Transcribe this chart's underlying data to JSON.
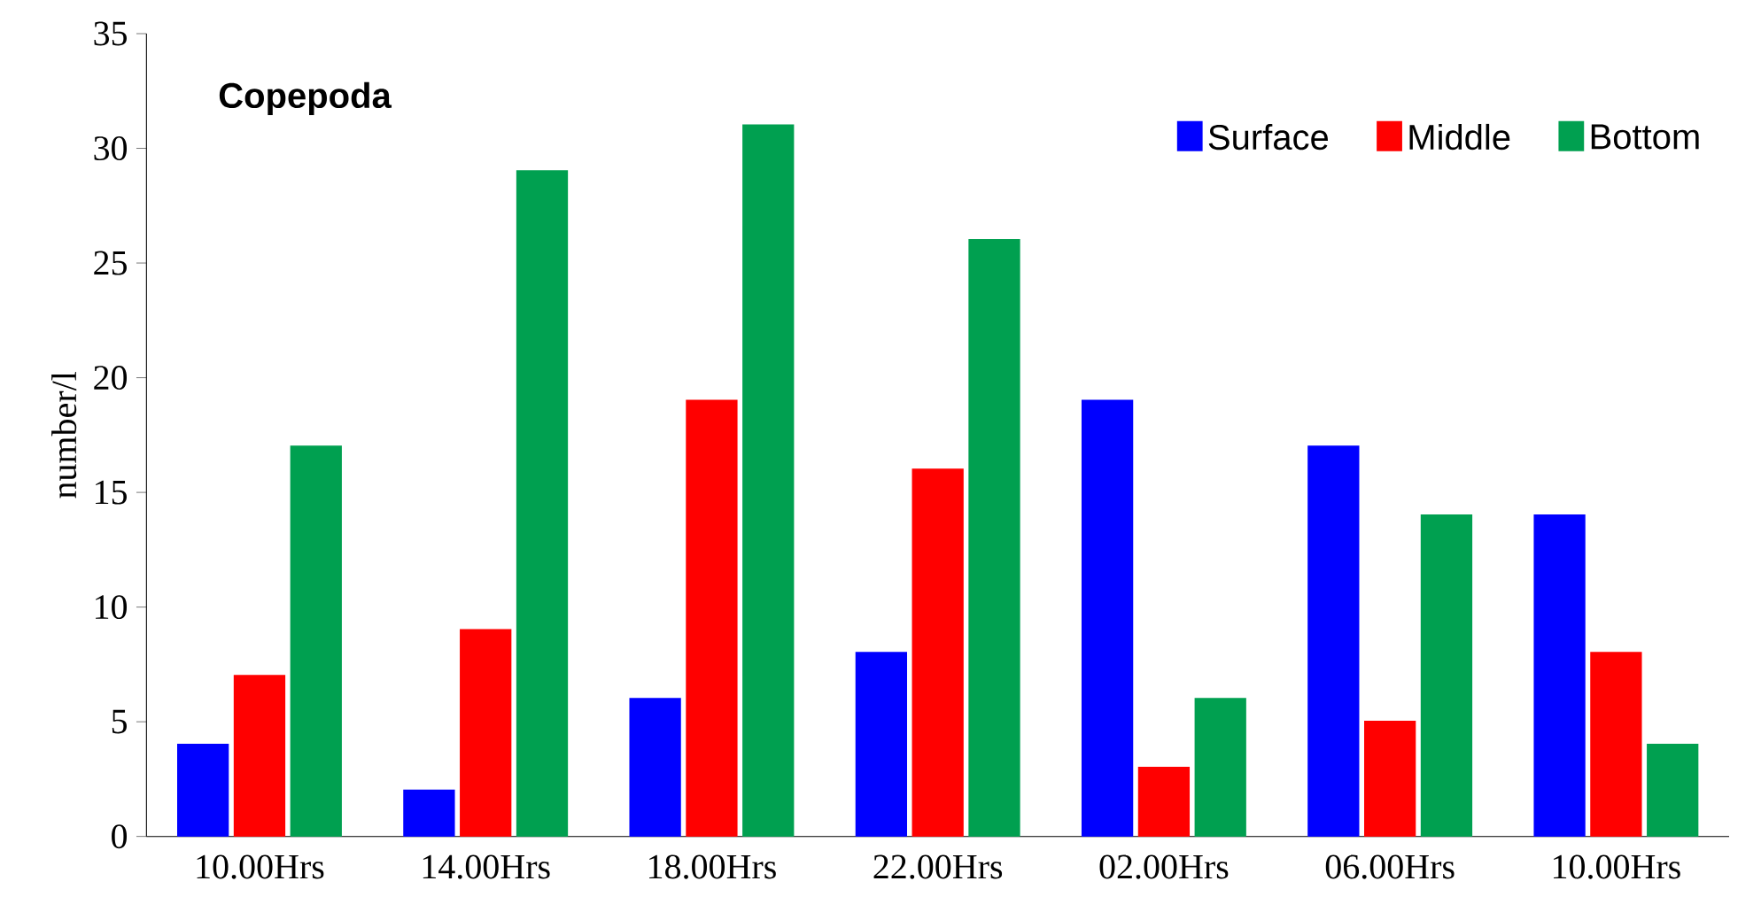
{
  "chart_data": {
    "type": "bar",
    "title": "Copepoda",
    "ylabel": "number/l",
    "categories": [
      "10.00Hrs",
      "14.00Hrs",
      "18.00Hrs",
      "22.00Hrs",
      "02.00Hrs",
      "06.00Hrs",
      "10.00Hrs"
    ],
    "series": [
      {
        "name": "Surface",
        "color": "#0000ff",
        "values": [
          4,
          2,
          6,
          8,
          19,
          17,
          14
        ]
      },
      {
        "name": "Middle",
        "color": "#ff0000",
        "values": [
          7,
          9,
          19,
          16,
          3,
          5,
          8
        ]
      },
      {
        "name": "Bottom",
        "color": "#00a050",
        "values": [
          17,
          29,
          31,
          26,
          6,
          14,
          4
        ]
      }
    ],
    "ylim": [
      0,
      35
    ],
    "yticks": [
      0,
      5,
      10,
      15,
      20,
      25,
      30,
      35
    ],
    "grid": false,
    "legend": "top right"
  }
}
